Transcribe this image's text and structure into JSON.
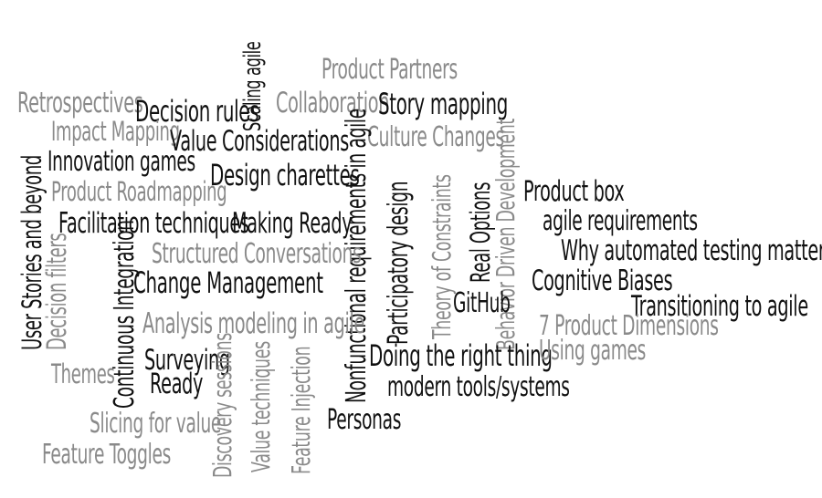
{
  "colors": {
    "dark": "#111111",
    "gray": "#8a8a8a",
    "background": "#ffffff"
  },
  "words": {
    "product_partners": "Product Partners",
    "scaling_agile": "Scaling agile",
    "retrospectives": "Retrospectives",
    "decision_rules": "Decision rules",
    "collaboration": "Collaboration",
    "story_mapping": "Story mapping",
    "impact_mapping": "Impact Mapping",
    "value_considerations": "Value Considerations",
    "culture_changes": "Culture Changes",
    "innovation_games": "Innovation games",
    "design_charettes": "Design charettes",
    "user_stories_and_beyond": "User Stories and beyond",
    "product_roadmapping": "Product Roadmapping",
    "decision_filters": "Decision filters",
    "facilitation_techniques": "Facilitation techniques",
    "making_ready": "Making Ready",
    "nonfunctional_requirements": "Nonfunctional requirements in agile",
    "participatory_design": "Participatory design",
    "theory_of_constraints": "Theory of Constraints",
    "real_options": "Real Options",
    "behavior_driven_development": "Behavior Driven Development",
    "product_box": "Product box",
    "agile_requirements": "agile requirements",
    "why_automated_testing": "Why automated testing matters",
    "structured_conversations": "Structured Conversations",
    "continuous_integration": "Continuous Integration",
    "change_management": "Change Management",
    "cognitive_biases": "Cognitive Biases",
    "transitioning_to_agile": "Transitioning to agile",
    "github": "GitHub",
    "seven_product_dimensions": "7 Product Dimensions",
    "analysis_modeling": "Analysis modeling in agile",
    "themes": "Themes",
    "surveying": "Surveying",
    "ready": "Ready",
    "doing_the_right_thing": "Doing the right thing",
    "using_games": "Using games",
    "modern_tools": "modern tools/systems",
    "discovery_sessions": "Discovery sessions",
    "value_techniques": "Value techniques",
    "feature_injection": "Feature Injection",
    "personas": "Personas",
    "slicing_for_value": "Slicing for value",
    "feature_toggles": "Feature Toggles"
  }
}
